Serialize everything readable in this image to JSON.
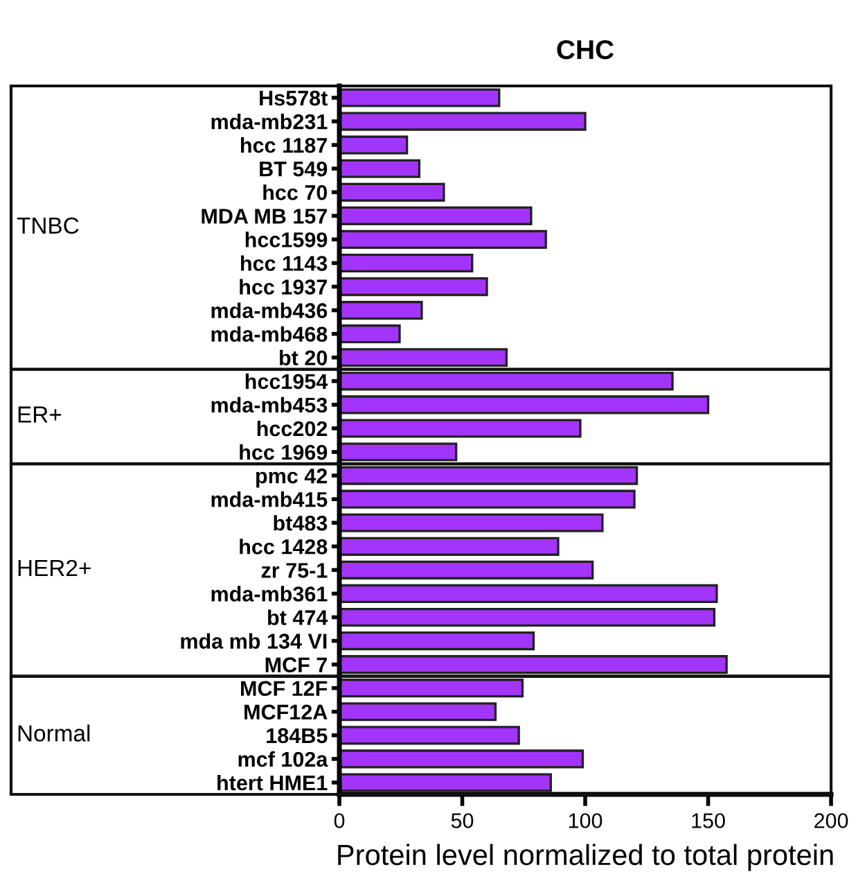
{
  "chart_data": [
    {
      "type": "bar",
      "orientation": "horizontal",
      "title": "CHC",
      "ylabel": "TNBC",
      "color": "#a335fa",
      "xlim": [
        0,
        200
      ],
      "xticks": [
        0,
        50,
        100,
        150,
        200
      ],
      "tick_labels": "y",
      "categories": [
        "Hs578t",
        "mda-mb231",
        "hcc 1187",
        "BT 549",
        "hcc 70",
        "MDA MB 157",
        "hcc1599",
        "hcc 1143",
        "hcc 1937",
        "mda-mb436",
        "mda-mb468",
        "bt 20"
      ],
      "values": [
        65,
        100,
        27.5,
        32.5,
        42.5,
        78,
        84,
        54,
        60,
        33.5,
        24.5,
        68
      ]
    },
    {
      "type": "bar",
      "orientation": "horizontal",
      "ylabel": "ER+",
      "color": "#a335fa",
      "xlim": [
        0,
        200
      ],
      "xticks": [
        0,
        50,
        100,
        150,
        200
      ],
      "tick_labels": "y",
      "categories": [
        "hcc1954",
        "mda-mb453",
        "hcc202",
        "hcc 1969"
      ],
      "values": [
        135.5,
        150,
        98,
        47.5
      ]
    },
    {
      "type": "bar",
      "orientation": "horizontal",
      "ylabel": "HER2+",
      "color": "#a335fa",
      "xlim": [
        0,
        200
      ],
      "xticks": [
        0,
        50,
        100,
        150,
        200
      ],
      "tick_labels": "y",
      "categories": [
        "pmc 42",
        "mda-mb415",
        "bt483",
        "hcc 1428",
        "zr 75-1",
        "mda-mb361",
        "bt 474",
        "mda mb 134 VI",
        "MCF 7"
      ],
      "values": [
        121,
        120,
        107,
        89,
        103,
        153.5,
        152.5,
        79,
        157.5
      ]
    },
    {
      "type": "bar",
      "orientation": "horizontal",
      "ylabel": "Normal",
      "xlabel": "Protein level normalized to total protein",
      "color": "#a335fa",
      "xlim": [
        0,
        200
      ],
      "xticks": [
        0,
        50,
        100,
        150,
        200
      ],
      "categories": [
        "MCF 12F",
        "MCF12A",
        "184B5",
        "mcf 102a",
        "htert HME1"
      ],
      "values": [
        74.5,
        63.5,
        73,
        99,
        86
      ]
    }
  ]
}
